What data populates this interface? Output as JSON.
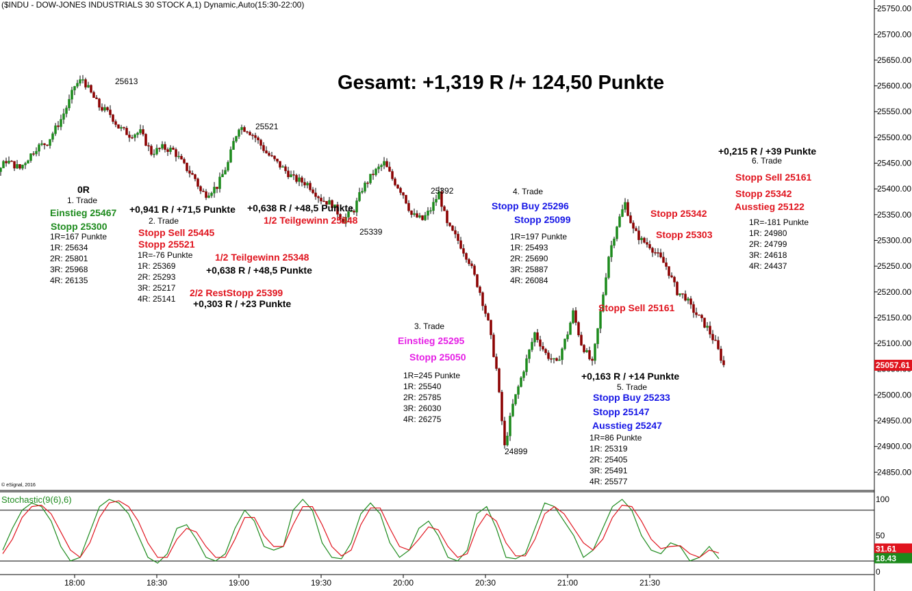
{
  "header": {
    "title": "($INDU - DOW-JONES INDUSTRIALS 30 STOCK A,1) Dynamic,Auto(15:30-22:00)",
    "copyright": "© eSignal, 2016",
    "stoch_label": "Stochastic(9(6),6)"
  },
  "chart_data": [
    {
      "type": "candlestick",
      "title": "($INDU - DOW-JONES INDUSTRIALS 30 STOCK A,1) Dynamic,Auto(15:30-22:00)",
      "y_ticks": [
        24850,
        24900,
        24950,
        25000,
        25050,
        25100,
        25150,
        25200,
        25250,
        25300,
        25350,
        25400,
        25450,
        25500,
        25550,
        25600,
        25650,
        25700,
        25750
      ],
      "x_ticks": [
        "18:00",
        "18:30",
        "19:00",
        "19:30",
        "20:00",
        "20:30",
        "21:00",
        "21:30"
      ],
      "last_price": "25057.61",
      "price_path": [
        [
          "17:00",
          25300
        ],
        [
          "17:04",
          25380
        ],
        [
          "17:08",
          25410
        ],
        [
          "17:12",
          25450
        ],
        [
          "17:16",
          25500
        ],
        [
          "17:19",
          25525
        ],
        [
          "17:22",
          25490
        ],
        [
          "17:26",
          25440
        ],
        [
          "17:30",
          25420
        ],
        [
          "17:35",
          25455
        ],
        [
          "17:40",
          25440
        ],
        [
          "17:46",
          25480
        ],
        [
          "17:50",
          25490
        ],
        [
          "17:55",
          25535
        ],
        [
          "17:58",
          25570
        ],
        [
          "18:00",
          25600
        ],
        [
          "18:03",
          25613
        ],
        [
          "18:06",
          25585
        ],
        [
          "18:09",
          25560
        ],
        [
          "18:13",
          25545
        ],
        [
          "18:16",
          25520
        ],
        [
          "18:20",
          25505
        ],
        [
          "18:24",
          25510
        ],
        [
          "18:28",
          25470
        ],
        [
          "18:32",
          25480
        ],
        [
          "18:36",
          25475
        ],
        [
          "18:40",
          25445
        ],
        [
          "18:44",
          25420
        ],
        [
          "18:46",
          25395
        ],
        [
          "18:48",
          25390
        ],
        [
          "18:52",
          25405
        ],
        [
          "18:56",
          25450
        ],
        [
          "18:58",
          25490
        ],
        [
          "19:00",
          25521
        ],
        [
          "19:03",
          25515
        ],
        [
          "19:06",
          25500
        ],
        [
          "19:10",
          25470
        ],
        [
          "19:15",
          25445
        ],
        [
          "19:20",
          25420
        ],
        [
          "19:25",
          25410
        ],
        [
          "19:30",
          25380
        ],
        [
          "19:34",
          25370
        ],
        [
          "19:38",
          25339
        ],
        [
          "19:42",
          25360
        ],
        [
          "19:45",
          25400
        ],
        [
          "19:49",
          25430
        ],
        [
          "19:53",
          25450
        ],
        [
          "19:56",
          25420
        ],
        [
          "20:00",
          25390
        ],
        [
          "20:03",
          25350
        ],
        [
          "20:07",
          25340
        ],
        [
          "20:10",
          25360
        ],
        [
          "20:13",
          25392
        ],
        [
          "20:16",
          25330
        ],
        [
          "20:20",
          25300
        ],
        [
          "20:24",
          25260
        ],
        [
          "20:28",
          25200
        ],
        [
          "20:31",
          25140
        ],
        [
          "20:34",
          25050
        ],
        [
          "20:37",
          24899
        ],
        [
          "20:40",
          24980
        ],
        [
          "20:44",
          25050
        ],
        [
          "20:48",
          25120
        ],
        [
          "20:52",
          25080
        ],
        [
          "20:56",
          25060
        ],
        [
          "21:00",
          25120
        ],
        [
          "21:02",
          25160
        ],
        [
          "21:05",
          25100
        ],
        [
          "21:09",
          25060
        ],
        [
          "21:12",
          25160
        ],
        [
          "21:15",
          25270
        ],
        [
          "21:18",
          25330
        ],
        [
          "21:21",
          25372
        ],
        [
          "21:24",
          25320
        ],
        [
          "21:27",
          25300
        ],
        [
          "21:30",
          25290
        ],
        [
          "21:33",
          25270
        ],
        [
          "21:36",
          25250
        ],
        [
          "21:40",
          25200
        ],
        [
          "21:43",
          25190
        ],
        [
          "21:45",
          25170
        ],
        [
          "21:48",
          25150
        ],
        [
          "21:51",
          25130
        ],
        [
          "21:54",
          25100
        ],
        [
          "21:57",
          25057.61
        ]
      ],
      "swing_labels": [
        "25613",
        "25521",
        "25392",
        "25339",
        "24899"
      ]
    },
    {
      "type": "line",
      "title": "Stochastic(9(6),6)",
      "y_ticks": [
        0,
        50,
        100
      ],
      "levels": [
        85,
        15
      ],
      "last_values": [
        "31.61",
        "18.43"
      ],
      "series": [
        {
          "name": "",
          "color": "#1c8a1c",
          "values": [
            30,
            60,
            85,
            95,
            90,
            70,
            35,
            15,
            20,
            55,
            90,
            100,
            95,
            80,
            50,
            20,
            12,
            25,
            60,
            65,
            45,
            20,
            15,
            25,
            60,
            85,
            70,
            35,
            30,
            35,
            85,
            100,
            85,
            40,
            20,
            18,
            40,
            80,
            95,
            80,
            40,
            20,
            30,
            60,
            70,
            50,
            20,
            15,
            30,
            80,
            90,
            60,
            20,
            18,
            25,
            60,
            95,
            90,
            70,
            50,
            20,
            30,
            60,
            90,
            100,
            85,
            50,
            30,
            25,
            40,
            35,
            15,
            20,
            35,
            18
          ]
        },
        {
          "name": "",
          "color": "#e0141e",
          "values": [
            25,
            45,
            75,
            90,
            92,
            80,
            55,
            30,
            20,
            40,
            75,
            95,
            98,
            90,
            70,
            40,
            20,
            20,
            45,
            60,
            55,
            35,
            20,
            20,
            45,
            75,
            75,
            50,
            35,
            35,
            65,
            90,
            90,
            65,
            35,
            22,
            30,
            65,
            88,
            88,
            60,
            35,
            30,
            45,
            62,
            58,
            35,
            20,
            25,
            60,
            80,
            70,
            40,
            22,
            22,
            45,
            80,
            90,
            80,
            60,
            40,
            30,
            45,
            75,
            92,
            90,
            70,
            45,
            32,
            35,
            36,
            25,
            20,
            30,
            26
          ]
        }
      ]
    }
  ],
  "annotations": {
    "gesamt": "Gesamt: +1,319 R /+ 124,50 Punkte",
    "swing_25613": "25613",
    "swing_25521": "25521",
    "swing_25392": "25392",
    "swing_25339": "25339",
    "swing_24899": "24899",
    "t1_0r": "0R",
    "t1_title": "1. Trade",
    "t1_einstieg": "Einstieg 25467",
    "t1_stopp": "Stopp 25300",
    "t1_levels": [
      "1R=167 Punkte",
      "1R: 25634",
      "2R: 25801",
      "3R: 25968",
      "4R: 26135"
    ],
    "t1_result": "+0,941 R / +71,5 Punkte",
    "t2_title": "2. Trade",
    "t2_stopp_sell": "Stopp Sell 25445",
    "t2_stopp": "Stopp 25521",
    "t2_levels": [
      "1R=-76 Punkte",
      "1R: 25369",
      "2R: 25293",
      "3R: 25217",
      "4R: 25141"
    ],
    "t2_teil1_result": "+0,638 R / +48,5 Punkte",
    "t2_teil1": "1/2 Teilgewinn 25348",
    "t2_teil2": "1/2 Teilgewinn 25348",
    "t2_teil2_result": "+0,638 R / +48,5 Punkte",
    "t2_rest": "2/2 RestStopp 25399",
    "t2_rest_result": "+0,303 R / +23 Punkte",
    "t3_title": "3. Trade",
    "t3_einstieg": "Einstieg 25295",
    "t3_stopp": "Stopp 25050",
    "t3_levels": [
      "1R=245 Punkte",
      "1R: 25540",
      "2R: 25785",
      "3R: 26030",
      "4R: 26275"
    ],
    "t4_title": "4. Trade",
    "t4_buy": "Stopp Buy 25296",
    "t4_stopp": "Stopp 25099",
    "t4_levels": [
      "1R=197 Punkte",
      "1R: 25493",
      "2R: 25690",
      "3R: 25887",
      "4R: 26084"
    ],
    "t5_result": "+0,163 R / +14 Punkte",
    "t5_title": "5. Trade",
    "t5_buy": "Stopp Buy 25233",
    "t5_stopp": "Stopp 25147",
    "t5_ausstieg": "Ausstieg 25247",
    "t5_levels": [
      "1R=86 Punkte",
      "1R: 25319",
      "2R: 25405",
      "3R: 25491",
      "4R: 25577"
    ],
    "t5_stopp_25342": "Stopp 25342",
    "t5_stopp_25303": "Stopp 25303",
    "t5_stopp_sell": "Stopp Sell 25161",
    "t6_result": "+0,215 R / +39 Punkte",
    "t6_title": "6. Trade",
    "t6_stopp_sell": "Stopp Sell 25161",
    "t6_stopp": "Stopp 25342",
    "t6_ausstieg": "Ausstieg 25122",
    "t6_levels": [
      "1R=-181 Punkte",
      "1R: 24980",
      "2R: 24799",
      "3R: 24618",
      "4R: 24437"
    ]
  },
  "colors": {
    "up_candle": "#1c8a1c",
    "down_candle": "#8b0000",
    "last_price_bg": "#e0141e",
    "stoch_green": "#1c8a1c",
    "stoch_red": "#e0141e"
  }
}
